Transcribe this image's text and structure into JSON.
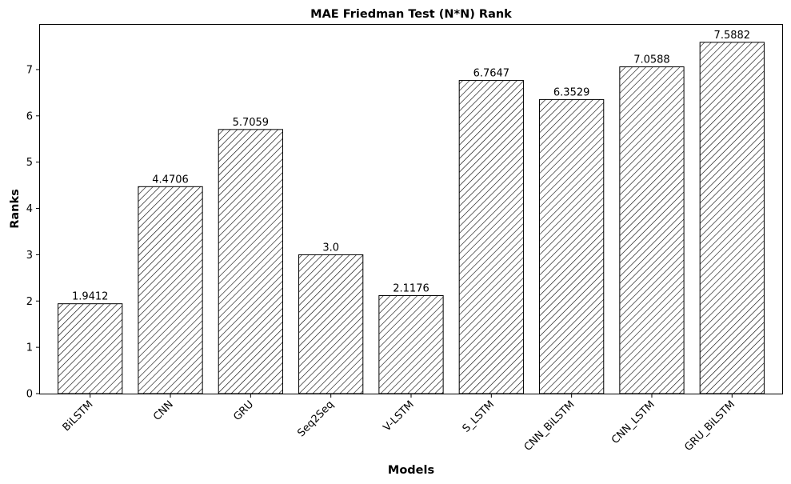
{
  "chart_data": {
    "type": "bar",
    "title": "MAE Friedman Test (N*N) Rank",
    "xlabel": "Models",
    "ylabel": "Ranks",
    "categories": [
      "BiLSTM",
      "CNN",
      "GRU",
      "Seq2Seq",
      "V-LSTM",
      "S_LSTM",
      "CNN_BiLSTM",
      "CNN_LSTM",
      "GRU_BiLSTM"
    ],
    "values": [
      1.9412,
      4.4706,
      5.7059,
      3.0,
      2.1176,
      6.7647,
      6.3529,
      7.0588,
      7.5882
    ],
    "value_labels": [
      "1.9412",
      "4.4706",
      "5.7059",
      "3.0",
      "2.1176",
      "6.7647",
      "6.3529",
      "7.0588",
      "7.5882"
    ],
    "yticks": [
      0,
      1,
      2,
      3,
      4,
      5,
      6,
      7
    ],
    "ylim": [
      0,
      7.967
    ],
    "bar_style": {
      "fill": "#ffffff",
      "edge": "#000000",
      "hatch": "////"
    },
    "grid": false,
    "legend": "none"
  }
}
